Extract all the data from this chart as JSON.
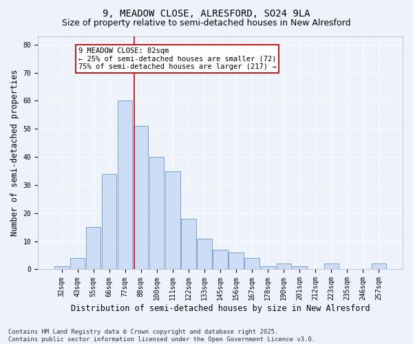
{
  "title1": "9, MEADOW CLOSE, ALRESFORD, SO24 9LA",
  "title2": "Size of property relative to semi-detached houses in New Alresford",
  "xlabel": "Distribution of semi-detached houses by size in New Alresford",
  "ylabel": "Number of semi-detached properties",
  "categories": [
    "32sqm",
    "43sqm",
    "55sqm",
    "66sqm",
    "77sqm",
    "88sqm",
    "100sqm",
    "111sqm",
    "122sqm",
    "133sqm",
    "145sqm",
    "156sqm",
    "167sqm",
    "178sqm",
    "190sqm",
    "201sqm",
    "212sqm",
    "223sqm",
    "235sqm",
    "246sqm",
    "257sqm"
  ],
  "values": [
    1,
    4,
    15,
    34,
    60,
    51,
    40,
    35,
    18,
    11,
    7,
    6,
    4,
    1,
    2,
    1,
    0,
    2,
    0,
    0,
    2
  ],
  "bar_color": "#ccddf5",
  "bar_edge_color": "#6699cc",
  "background_color": "#eef2fb",
  "grid_color": "#ffffff",
  "red_line_x": 4.58,
  "annotation_text": "9 MEADOW CLOSE: 82sqm\n← 25% of semi-detached houses are smaller (72)\n75% of semi-detached houses are larger (217) →",
  "annotation_box_color": "#ffffff",
  "annotation_border_color": "#cc0000",
  "ylim": [
    0,
    83
  ],
  "yticks": [
    0,
    10,
    20,
    30,
    40,
    50,
    60,
    70,
    80
  ],
  "footnote": "Contains HM Land Registry data © Crown copyright and database right 2025.\nContains public sector information licensed under the Open Government Licence v3.0.",
  "title1_fontsize": 10,
  "title2_fontsize": 9,
  "xlabel_fontsize": 8.5,
  "ylabel_fontsize": 8.5,
  "tick_fontsize": 7,
  "footnote_fontsize": 6.5,
  "annot_fontsize": 7.5
}
